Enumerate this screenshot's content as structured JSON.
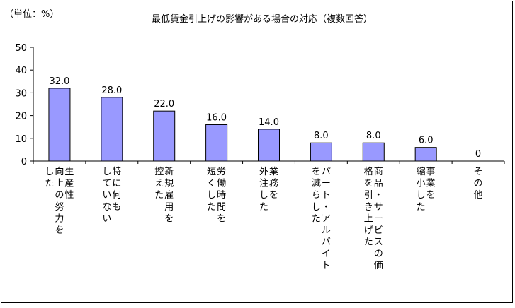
{
  "chart_data": {
    "type": "bar",
    "title": "最低賃金引上げの影響がある場合の対応（複数回答）",
    "unit_label": "（単位：%）",
    "categories": [
      [
        "生産性",
        "向上の努力を",
        "した"
      ],
      [
        "特に何も",
        "していない"
      ],
      [
        "新規雇用を",
        "控えた"
      ],
      [
        "労働時間を",
        "短くした"
      ],
      [
        "業務を",
        "外注した"
      ],
      [
        "パート・アルバイト",
        "を減らした"
      ],
      [
        "商品・サービスの価",
        "格を引き上げた"
      ],
      [
        "事業を",
        "縮小した"
      ],
      [
        "その他"
      ]
    ],
    "values": [
      32.0,
      28.0,
      22.0,
      16.0,
      14.0,
      8.0,
      8.0,
      6.0,
      0
    ],
    "value_labels": [
      "32.0",
      "28.0",
      "22.0",
      "16.0",
      "14.0",
      "8.0",
      "8.0",
      "6.0",
      "0"
    ],
    "ylim": [
      0,
      50
    ],
    "yticks": [
      0,
      10,
      20,
      30,
      40,
      50
    ],
    "grid": false,
    "colors": {
      "bar_fill": "#9999ff",
      "bar_stroke": "#000000",
      "frame": "#000000"
    }
  }
}
